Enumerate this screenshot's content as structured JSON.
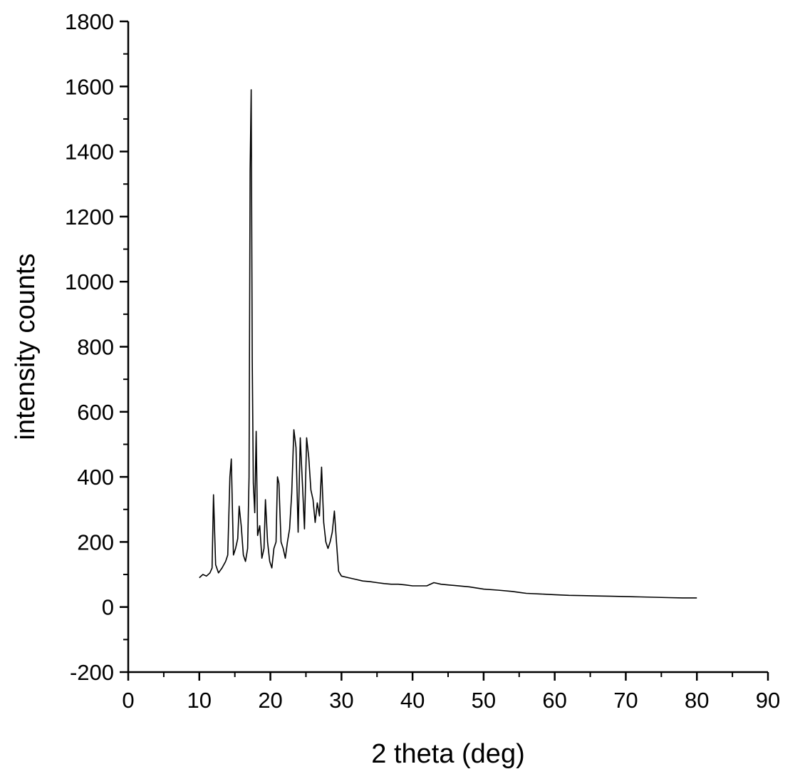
{
  "chart_data": {
    "type": "line",
    "title": "",
    "xlabel": "2 theta (deg)",
    "ylabel": "intensity counts",
    "xlim": [
      0,
      90
    ],
    "ylim": [
      -200,
      1800
    ],
    "xticks": [
      0,
      10,
      20,
      30,
      40,
      50,
      60,
      70,
      80,
      90
    ],
    "yticks": [
      -200,
      0,
      200,
      400,
      600,
      800,
      1000,
      1200,
      1400,
      1600,
      1800
    ],
    "xtick_labels": [
      "0",
      "10",
      "20",
      "30",
      "40",
      "50",
      "60",
      "70",
      "80",
      "90"
    ],
    "ytick_labels": [
      "-200",
      "0",
      "200",
      "400",
      "600",
      "800",
      "1000",
      "1200",
      "1400",
      "1600",
      "1800"
    ],
    "grid": false,
    "legend": "none",
    "line_color": "#000000",
    "series": [
      {
        "x": [
          10,
          10.5,
          11,
          11.5,
          11.8,
          12.0,
          12.3,
          12.7,
          13.2,
          13.7,
          14.0,
          14.3,
          14.5,
          14.8,
          15.1,
          15.4,
          15.6,
          15.9,
          16.2,
          16.5,
          16.8,
          17.0,
          17.15,
          17.3,
          17.45,
          17.6,
          17.8,
          18.0,
          18.2,
          18.5,
          18.8,
          19.1,
          19.3,
          19.6,
          19.9,
          20.2,
          20.5,
          20.8,
          21.0,
          21.2,
          21.5,
          21.8,
          22.1,
          22.4,
          22.7,
          23.0,
          23.3,
          23.6,
          23.9,
          24.2,
          24.5,
          24.8,
          25.1,
          25.4,
          25.7,
          26.0,
          26.3,
          26.6,
          26.9,
          27.2,
          27.5,
          27.8,
          28.1,
          28.4,
          28.7,
          29.0,
          29.3,
          29.6,
          30.0,
          31.0,
          32.0,
          33.0,
          34.0,
          35.0,
          36.0,
          37.0,
          38.0,
          39.0,
          40.0,
          42.0,
          43.0,
          44.0,
          45.0,
          46.0,
          48.0,
          50.0,
          52.0,
          54.0,
          55.0,
          56.0,
          58.0,
          60.0,
          62.0,
          64.0,
          66.0,
          68.0,
          70.0,
          72.0,
          74.0,
          76.0,
          78.0,
          80.0
        ],
        "y": [
          90,
          100,
          95,
          105,
          120,
          345,
          130,
          105,
          120,
          140,
          160,
          400,
          455,
          160,
          180,
          210,
          310,
          250,
          160,
          140,
          180,
          400,
          1340,
          1590,
          760,
          380,
          290,
          540,
          220,
          250,
          150,
          180,
          330,
          200,
          140,
          120,
          180,
          200,
          400,
          380,
          200,
          180,
          150,
          200,
          240,
          350,
          545,
          490,
          230,
          520,
          380,
          240,
          520,
          460,
          360,
          330,
          260,
          320,
          280,
          430,
          260,
          200,
          180,
          200,
          230,
          295,
          200,
          110,
          95,
          90,
          85,
          80,
          78,
          75,
          72,
          70,
          70,
          68,
          65,
          65,
          75,
          70,
          68,
          66,
          62,
          55,
          52,
          48,
          45,
          42,
          40,
          38,
          36,
          35,
          34,
          33,
          32,
          31,
          30,
          29,
          28,
          28
        ]
      }
    ]
  }
}
